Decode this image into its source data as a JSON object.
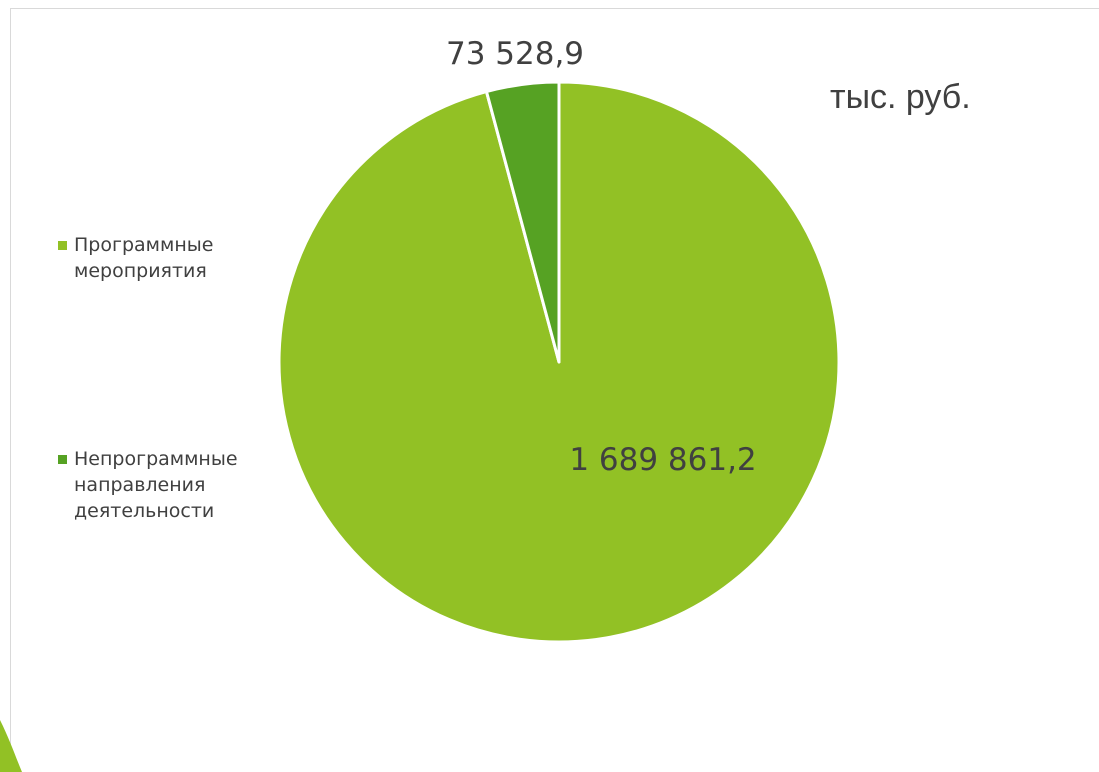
{
  "chart_data": {
    "type": "pie",
    "unit_label": "тыс. руб.",
    "slices": [
      {
        "name": "Программные мероприятия",
        "legend_label": "Программные\nмероприятия",
        "value": 1689861.2,
        "value_label": "1 689 861,2",
        "color": "#92c125"
      },
      {
        "name": "Непрограммные направления деятельности",
        "legend_label": "Непрограммные\nнаправления\nдеятельности",
        "value": 73528.9,
        "value_label": "73 528,9",
        "color": "#56a223"
      }
    ],
    "start_angle_deg": 0,
    "direction": "clockwise",
    "legend_position": "left"
  },
  "decor": {
    "corner_accent_color": "#92c125",
    "slice_border_color": "#ffffff"
  }
}
